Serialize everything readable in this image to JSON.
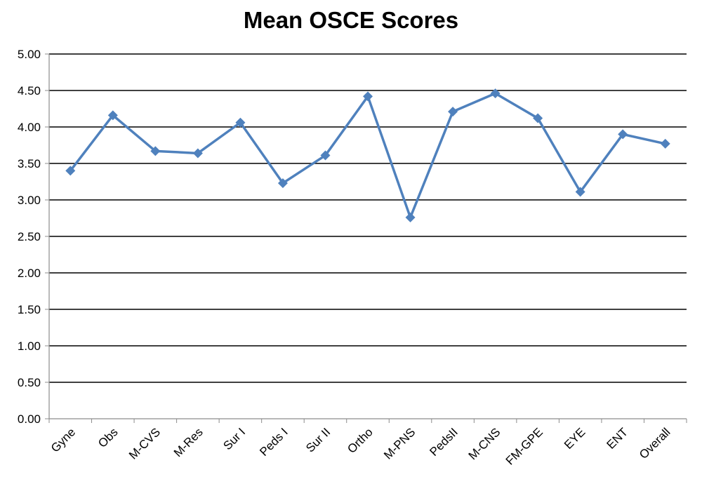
{
  "chart_data": {
    "type": "line",
    "title": "Mean OSCE Scores",
    "xlabel": "",
    "ylabel": "",
    "categories": [
      "Gyne",
      "Obs",
      "M-CVS",
      "M-Res",
      "Sur I",
      "Peds I",
      "Sur II",
      "Ortho",
      "M-PNS",
      "PedsII",
      "M-CNS",
      "FM-GPE",
      "EYE",
      "ENT",
      "Overall"
    ],
    "series": [
      {
        "values": [
          3.4,
          4.16,
          3.67,
          3.64,
          4.06,
          3.23,
          3.61,
          4.42,
          2.76,
          4.21,
          4.46,
          4.12,
          3.11,
          3.9,
          3.77
        ]
      }
    ],
    "ylim": [
      0,
      5
    ],
    "ytick_labels": [
      "0.00",
      "0.50",
      "1.00",
      "1.50",
      "2.00",
      "2.50",
      "3.00",
      "3.50",
      "4.00",
      "4.50",
      "5.00"
    ],
    "grid": true,
    "legend": "none",
    "marker": "diamond",
    "line_color": "#4F81BD"
  }
}
